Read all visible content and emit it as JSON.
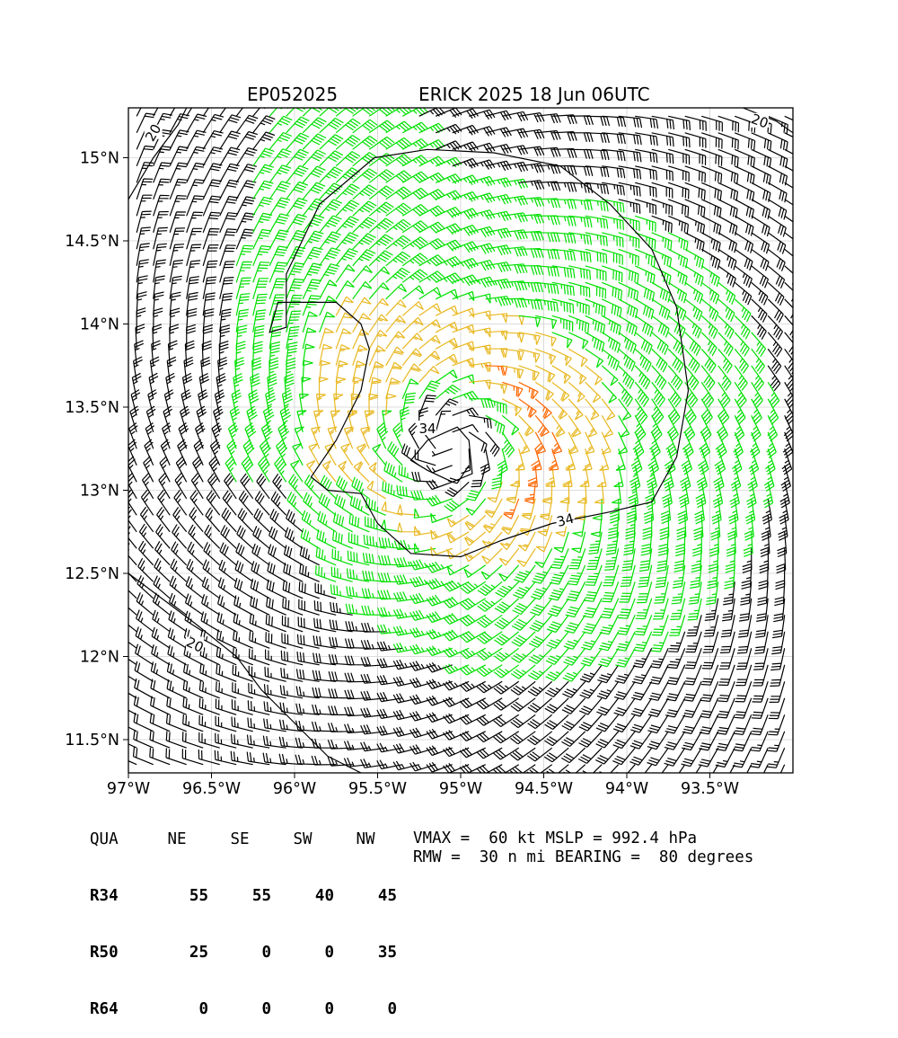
{
  "title_left": "EP052025",
  "title_right": "ERICK 2025 18 Jun 06UTC",
  "colors": {
    "barb_low": "#000000",
    "barb_34": "#00e000",
    "barb_50": "#e8b820",
    "barb_64": "#ff6600",
    "contour": "#000000",
    "grid": "#d0d0d0"
  },
  "chart_data": {
    "type": "wind-barb-map",
    "storm_id": "EP052025",
    "storm_name": "ERICK",
    "center": {
      "lon": -95.05,
      "lat": 13.28
    },
    "xlim": [
      -97.0,
      -93.0
    ],
    "ylim": [
      11.3,
      15.3
    ],
    "xticks": [
      -97.0,
      -96.5,
      -96.0,
      -95.5,
      -95.0,
      -94.5,
      -94.0,
      -93.5
    ],
    "xtick_labels": [
      "97°W",
      "96.5°W",
      "96°W",
      "95.5°W",
      "95°W",
      "94.5°W",
      "94°W",
      "93.5°W"
    ],
    "yticks": [
      11.5,
      12.0,
      12.5,
      13.0,
      13.5,
      14.0,
      14.5,
      15.0
    ],
    "ytick_labels": [
      "11.5°N",
      "12°N",
      "12.5°N",
      "13°N",
      "13.5°N",
      "14°N",
      "14.5°N",
      "15°N"
    ],
    "grid": true,
    "wind_speed_thresholds_kt": [
      34,
      50,
      64
    ],
    "contour_labels": [
      "34",
      "34",
      "20",
      "20",
      "20"
    ],
    "vmax_kt": 60,
    "mslp_hpa": 992.4,
    "rmw_nmi": 30,
    "bearing_deg": 80,
    "wind_radii": {
      "header": [
        "QUA",
        "NE",
        "SE",
        "SW",
        "NW"
      ],
      "rows": [
        {
          "label": "R34",
          "values": [
            55,
            55,
            40,
            45
          ]
        },
        {
          "label": "R50",
          "values": [
            25,
            0,
            0,
            35
          ]
        },
        {
          "label": "R64",
          "values": [
            0,
            0,
            0,
            0
          ]
        }
      ]
    }
  },
  "summary_line_1": "VMAX =  60 kt MSLP = 992.4 hPa",
  "summary_line_2": "RMW =  30 n mi BEARING =  80 degrees"
}
